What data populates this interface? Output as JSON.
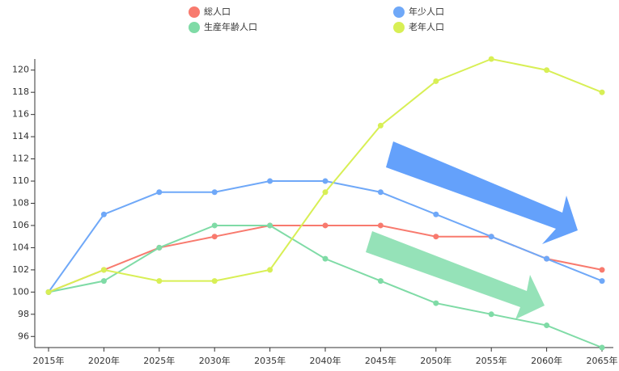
{
  "chart_data": {
    "type": "line",
    "categories": [
      "2015年",
      "2020年",
      "2025年",
      "2030年",
      "2035年",
      "2040年",
      "2045年",
      "2050年",
      "2055年",
      "2060年",
      "2065年"
    ],
    "series": [
      {
        "name": "総人口",
        "color": "#f87a6e",
        "values": [
          100,
          102,
          104,
          105,
          106,
          106,
          106,
          105,
          105,
          103,
          102
        ]
      },
      {
        "name": "年少人口",
        "color": "#6fa8f8",
        "values": [
          100,
          107,
          109,
          109,
          110,
          110,
          109,
          107,
          105,
          103,
          101
        ]
      },
      {
        "name": "生産年齢人口",
        "color": "#7fdba6",
        "values": [
          100,
          101,
          104,
          106,
          106,
          103,
          101,
          99,
          98,
          97,
          95
        ]
      },
      {
        "name": "老年人口",
        "color": "#d8ef55",
        "values": [
          100,
          102,
          101,
          101,
          102,
          109,
          115,
          119,
          121,
          120,
          118
        ]
      }
    ],
    "ylim": [
      95,
      121
    ],
    "yticks": [
      96,
      98,
      100,
      102,
      104,
      106,
      108,
      110,
      112,
      114,
      116,
      118,
      120
    ],
    "legend": "top"
  }
}
